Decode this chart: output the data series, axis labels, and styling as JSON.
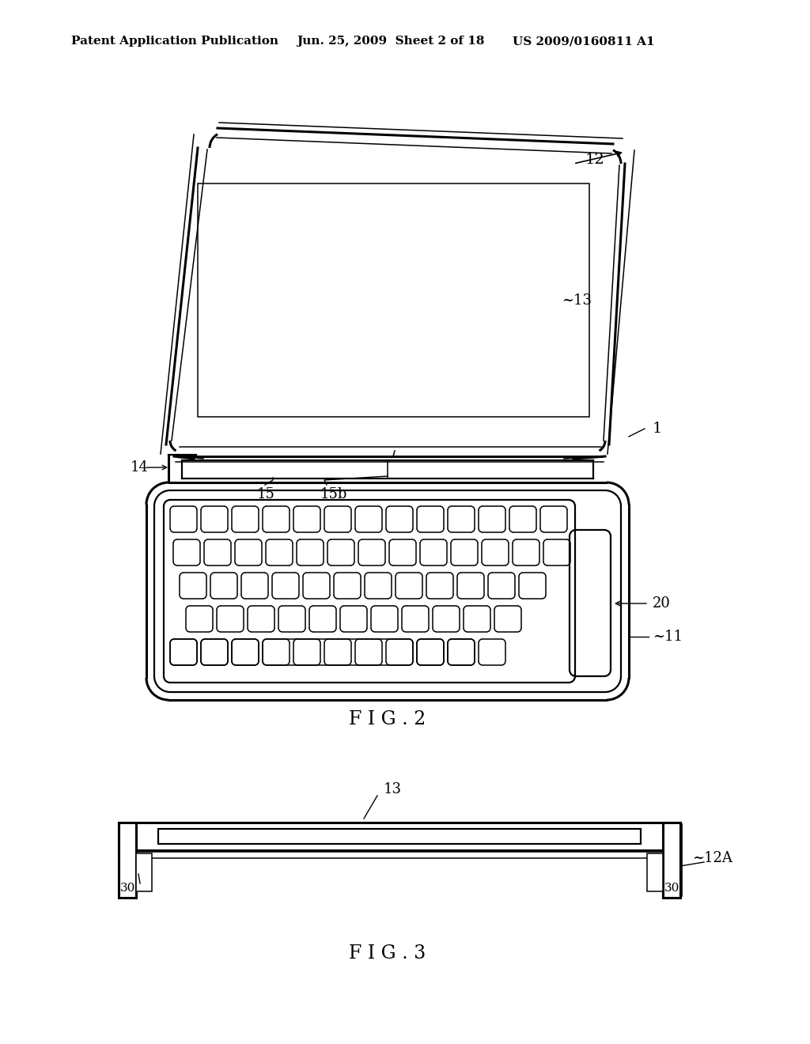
{
  "bg_color": "#ffffff",
  "line_color": "#000000",
  "header_left": "Patent Application Publication",
  "header_mid": "Jun. 25, 2009  Sheet 2 of 18",
  "header_right": "US 2009/0160811 A1",
  "fig2_label": "F I G . 2",
  "fig3_label": "F I G . 3",
  "label_12": "12",
  "label_13": "13",
  "label_14": "14",
  "label_15": "15",
  "label_15b": "15b",
  "label_1": "1",
  "label_11": "11",
  "label_20": "20",
  "label_30a": "30",
  "label_30b": "30",
  "label_12A": "12A"
}
